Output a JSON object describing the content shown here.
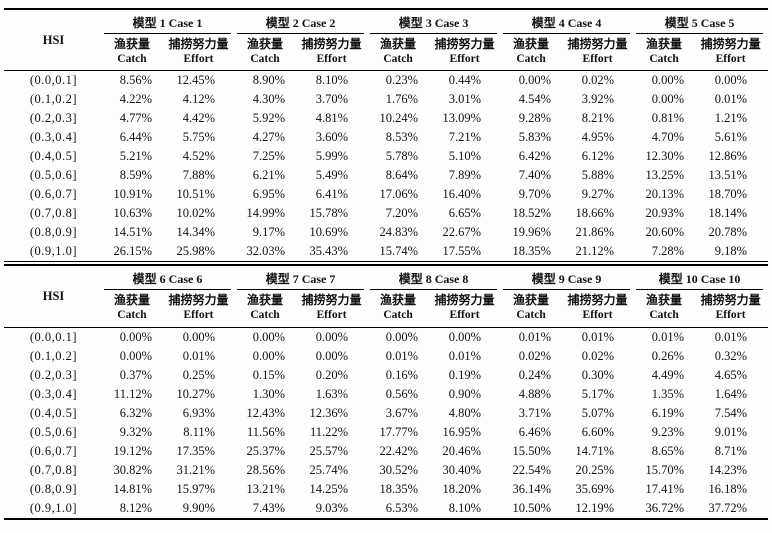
{
  "page": {
    "background": "#fdfdfd",
    "text_color": "#111111",
    "rule_color": "#000000"
  },
  "table": {
    "hsi_header": "HSI",
    "subheaders": {
      "catch_zh": "渔获量",
      "catch_en": "Catch",
      "effort_zh": "捕捞努力量",
      "effort_en": "Effort"
    },
    "sections": [
      {
        "name": "models-1-5",
        "model_headers": [
          "模型 1 Case 1",
          "模型 2 Case 2",
          "模型 3 Case 3",
          "模型 4 Case 4",
          "模型 5 Case 5"
        ],
        "rows": [
          {
            "hsi": "(0.0,0.1]",
            "values": [
              "8.56%",
              "12.45%",
              "8.90%",
              "8.10%",
              "0.23%",
              "0.44%",
              "0.00%",
              "0.02%",
              "0.00%",
              "0.00%"
            ]
          },
          {
            "hsi": "(0.1,0.2]",
            "values": [
              "4.22%",
              "4.12%",
              "4.30%",
              "3.70%",
              "1.76%",
              "3.01%",
              "4.54%",
              "3.92%",
              "0.00%",
              "0.01%"
            ]
          },
          {
            "hsi": "(0.2,0.3]",
            "values": [
              "4.77%",
              "4.42%",
              "5.92%",
              "4.81%",
              "10.24%",
              "13.09%",
              "9.28%",
              "8.21%",
              "0.81%",
              "1.21%"
            ]
          },
          {
            "hsi": "(0.3,0.4]",
            "values": [
              "6.44%",
              "5.75%",
              "4.27%",
              "3.60%",
              "8.53%",
              "7.21%",
              "5.83%",
              "4.95%",
              "4.70%",
              "5.61%"
            ]
          },
          {
            "hsi": "(0.4,0.5]",
            "values": [
              "5.21%",
              "4.52%",
              "7.25%",
              "5.99%",
              "5.78%",
              "5.10%",
              "6.42%",
              "6.12%",
              "12.30%",
              "12.86%"
            ]
          },
          {
            "hsi": "(0.5,0.6]",
            "values": [
              "8.59%",
              "7.88%",
              "6.21%",
              "5.49%",
              "8.64%",
              "7.89%",
              "7.40%",
              "5.88%",
              "13.25%",
              "13.51%"
            ]
          },
          {
            "hsi": "(0.6,0.7]",
            "values": [
              "10.91%",
              "10.51%",
              "6.95%",
              "6.41%",
              "17.06%",
              "16.40%",
              "9.70%",
              "9.27%",
              "20.13%",
              "18.70%"
            ]
          },
          {
            "hsi": "(0.7,0.8]",
            "values": [
              "10.63%",
              "10.02%",
              "14.99%",
              "15.78%",
              "7.20%",
              "6.65%",
              "18.52%",
              "18.66%",
              "20.93%",
              "18.14%"
            ]
          },
          {
            "hsi": "(0.8,0.9]",
            "values": [
              "14.51%",
              "14.34%",
              "9.17%",
              "10.69%",
              "24.83%",
              "22.67%",
              "19.96%",
              "21.86%",
              "20.60%",
              "20.78%"
            ]
          },
          {
            "hsi": "(0.9,1.0]",
            "values": [
              "26.15%",
              "25.98%",
              "32.03%",
              "35.43%",
              "15.74%",
              "17.55%",
              "18.35%",
              "21.12%",
              "7.28%",
              "9.18%"
            ]
          }
        ]
      },
      {
        "name": "models-6-10",
        "model_headers": [
          "模型 6 Case 6",
          "模型 7 Case 7",
          "模型 8 Case 8",
          "模型 9 Case 9",
          "模型 10 Case 10"
        ],
        "rows": [
          {
            "hsi": "(0.0,0.1]",
            "values": [
              "0.00%",
              "0.00%",
              "0.00%",
              "0.00%",
              "0.00%",
              "0.00%",
              "0.01%",
              "0.01%",
              "0.01%",
              "0.01%"
            ]
          },
          {
            "hsi": "(0.1,0.2]",
            "values": [
              "0.00%",
              "0.01%",
              "0.00%",
              "0.00%",
              "0.01%",
              "0.01%",
              "0.02%",
              "0.02%",
              "0.26%",
              "0.32%"
            ]
          },
          {
            "hsi": "(0.2,0.3]",
            "values": [
              "0.37%",
              "0.25%",
              "0.15%",
              "0.20%",
              "0.16%",
              "0.19%",
              "0.24%",
              "0.30%",
              "4.49%",
              "4.65%"
            ]
          },
          {
            "hsi": "(0.3,0.4]",
            "values": [
              "11.12%",
              "10.27%",
              "1.30%",
              "1.63%",
              "0.56%",
              "0.90%",
              "4.88%",
              "5.17%",
              "1.35%",
              "1.64%"
            ]
          },
          {
            "hsi": "(0.4,0.5]",
            "values": [
              "6.32%",
              "6.93%",
              "12.43%",
              "12.36%",
              "3.67%",
              "4.80%",
              "3.71%",
              "5.07%",
              "6.19%",
              "7.54%"
            ]
          },
          {
            "hsi": "(0.5,0.6]",
            "values": [
              "9.32%",
              "8.11%",
              "11.56%",
              "11.22%",
              "17.77%",
              "16.95%",
              "6.46%",
              "6.60%",
              "9.23%",
              "9.01%"
            ]
          },
          {
            "hsi": "(0.6,0.7]",
            "values": [
              "19.12%",
              "17.35%",
              "25.37%",
              "25.57%",
              "22.42%",
              "20.46%",
              "15.50%",
              "14.71%",
              "8.65%",
              "8.71%"
            ]
          },
          {
            "hsi": "(0.7,0.8]",
            "values": [
              "30.82%",
              "31.21%",
              "28.56%",
              "25.74%",
              "30.52%",
              "30.40%",
              "22.54%",
              "20.25%",
              "15.70%",
              "14.23%"
            ]
          },
          {
            "hsi": "(0.8,0.9]",
            "values": [
              "14.81%",
              "15.97%",
              "13.21%",
              "14.25%",
              "18.35%",
              "18.20%",
              "36.14%",
              "35.69%",
              "17.41%",
              "16.18%"
            ]
          },
          {
            "hsi": "(0.9,1.0]",
            "values": [
              "8.12%",
              "9.90%",
              "7.43%",
              "9.03%",
              "6.53%",
              "8.10%",
              "10.50%",
              "12.19%",
              "36.72%",
              "37.72%"
            ]
          }
        ]
      }
    ]
  }
}
